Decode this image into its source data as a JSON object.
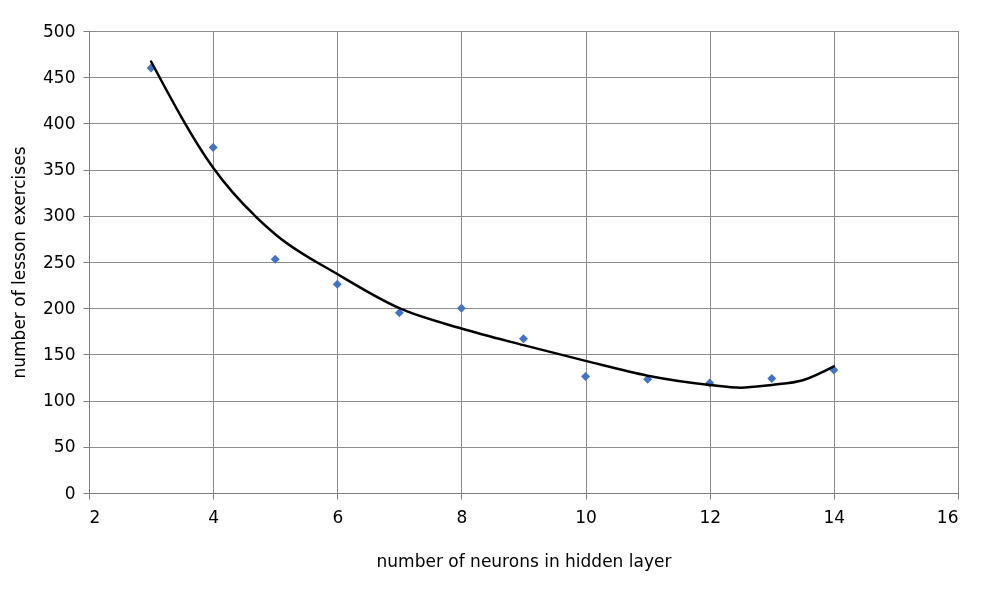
{
  "chart_data": {
    "type": "scatter",
    "xlabel": "number of neurons in hidden layer",
    "ylabel": "number of lesson exercises",
    "xlim": [
      2,
      16
    ],
    "xticks": [
      2,
      4,
      6,
      8,
      10,
      12,
      14,
      16
    ],
    "ylim": [
      0,
      500
    ],
    "yticks": [
      0,
      50,
      100,
      150,
      200,
      250,
      300,
      350,
      400,
      450,
      500
    ],
    "grid": true,
    "series": [
      {
        "color": "#4472c4",
        "marker": "diamond",
        "x": [
          3,
          4,
          5,
          6,
          7,
          8,
          9,
          10,
          11,
          12,
          13,
          14
        ],
        "values": [
          460,
          374,
          253,
          226,
          195,
          200,
          167,
          126,
          123,
          119,
          124,
          133
        ]
      },
      {
        "type": "line",
        "color": "#000000",
        "marker": "none",
        "line_style": "solid",
        "x": [
          3,
          4,
          5,
          6,
          7,
          8,
          9,
          10,
          11,
          12,
          12.5,
          13,
          13.5,
          14
        ],
        "values": [
          467,
          352,
          280,
          237,
          200,
          178,
          160,
          143,
          127,
          117,
          114,
          117,
          122,
          137
        ]
      }
    ]
  }
}
